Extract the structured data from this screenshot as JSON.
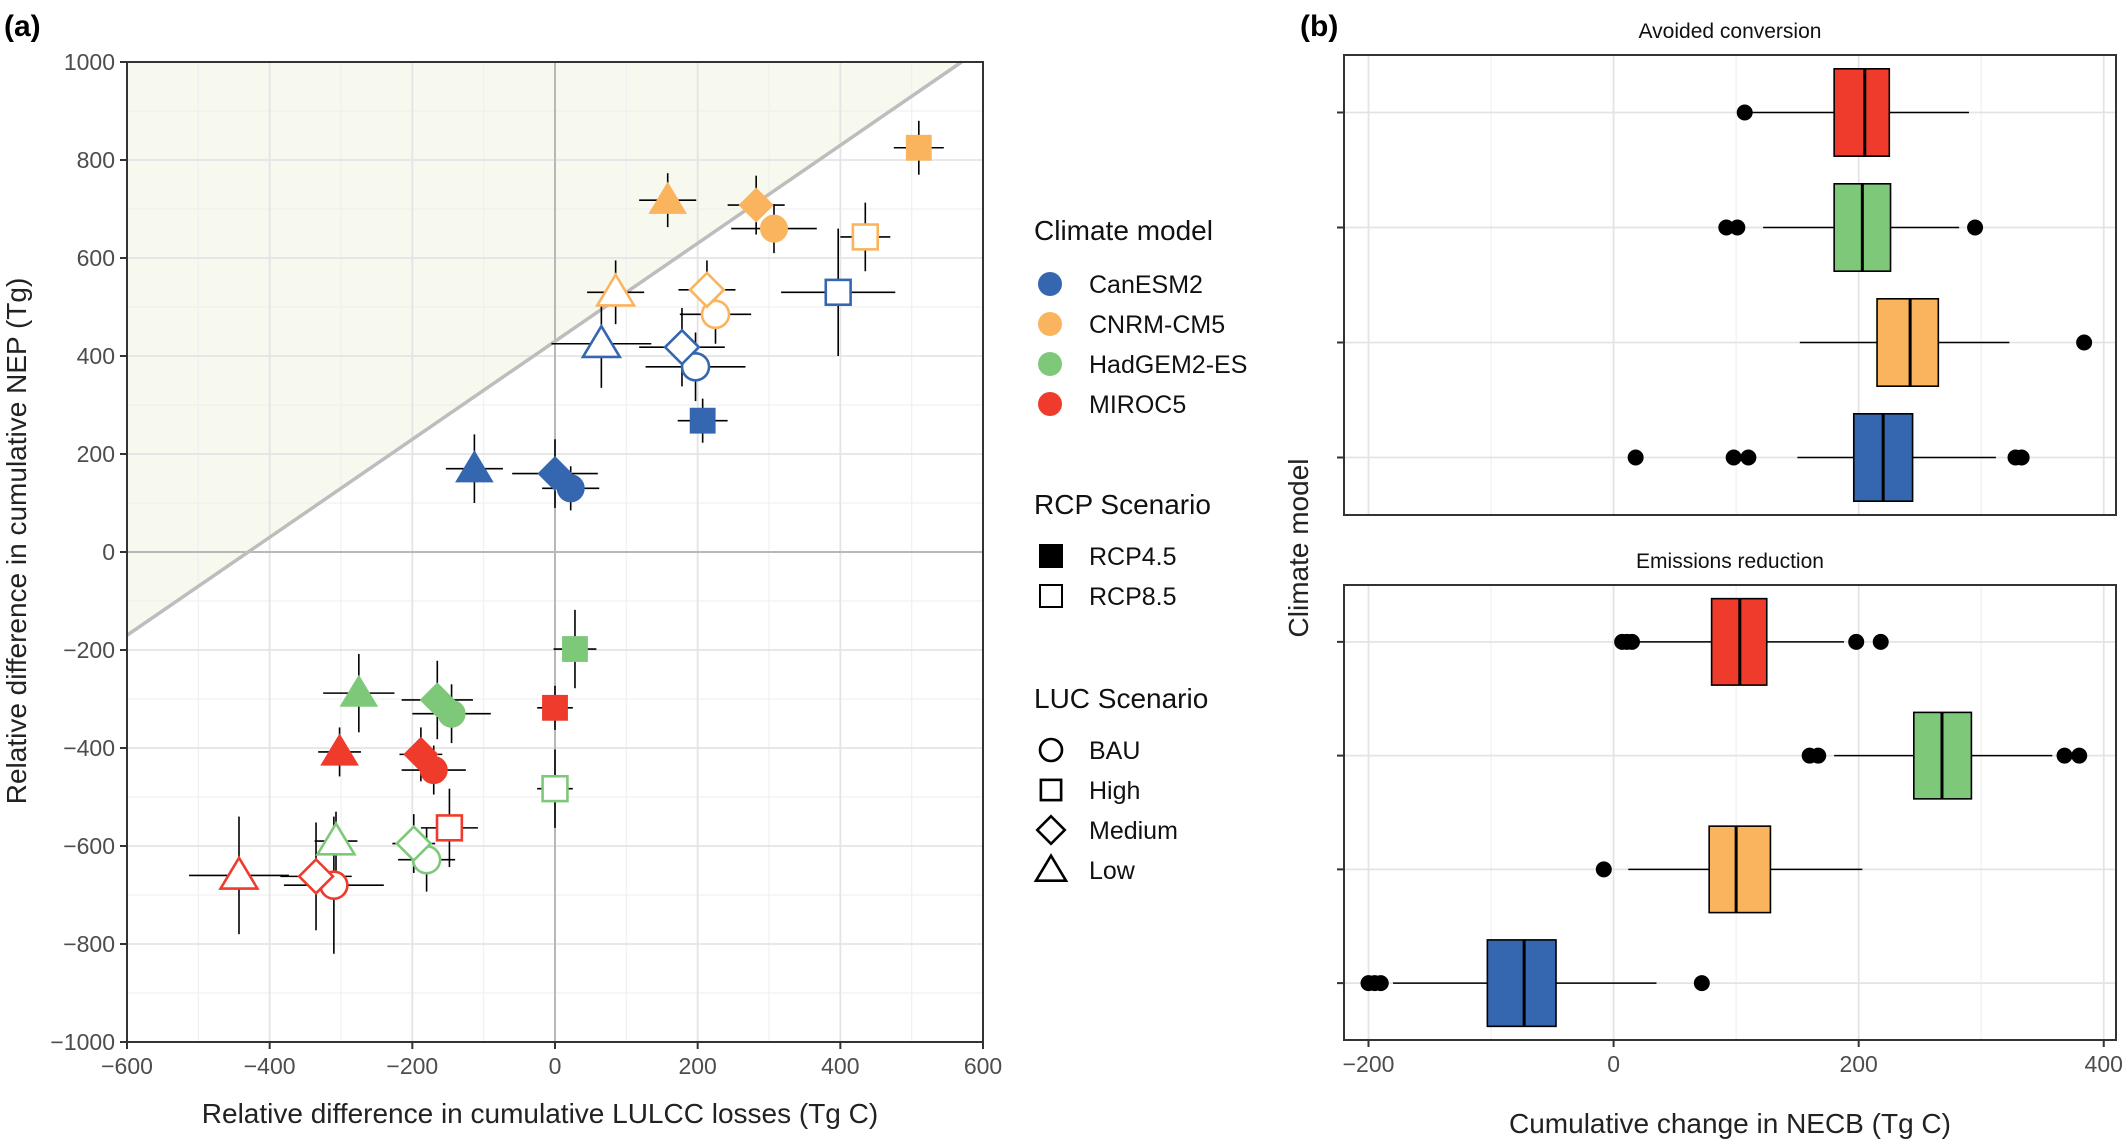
{
  "panel_a": {
    "label": "(a)",
    "xlabel": "Relative difference in cumulative LULCC losses (Tg C)",
    "ylabel": "Relative difference in cumulative NEP (Tg)"
  },
  "panel_b": {
    "label": "(b)",
    "xlabel": "Cumulative change in NECB (Tg C)",
    "ylabel": "Climate model",
    "facet_top": "Avoided conversion",
    "facet_bottom": "Emissions reduction"
  },
  "legend": {
    "climate_title": "Climate model",
    "climate_items": [
      {
        "label": "CanESM2",
        "color": "#3567b0"
      },
      {
        "label": "CNRM-CM5",
        "color": "#fbb45e"
      },
      {
        "label": "HadGEM2-ES",
        "color": "#7ec87a"
      },
      {
        "label": "MIROC5",
        "color": "#ee3b2b"
      }
    ],
    "rcp_title": "RCP Scenario",
    "rcp_items": [
      {
        "label": "RCP4.5",
        "fill": "filled"
      },
      {
        "label": "RCP8.5",
        "fill": "open"
      }
    ],
    "luc_title": "LUC Scenario",
    "luc_items": [
      {
        "label": "BAU",
        "shape": "circle"
      },
      {
        "label": "High",
        "shape": "square"
      },
      {
        "label": "Medium",
        "shape": "diamond"
      },
      {
        "label": "Low",
        "shape": "triangle"
      }
    ]
  },
  "chart_data": [
    {
      "type": "scatter",
      "xlabel": "Relative difference in cumulative LULCC losses (Tg C)",
      "ylabel": "Relative difference in cumulative NEP (Tg)",
      "xlim": [
        -600,
        600
      ],
      "ylim": [
        -1000,
        1000
      ],
      "xticks": [
        -600,
        -400,
        -200,
        0,
        200,
        400,
        600
      ],
      "yticks": [
        -1000,
        -800,
        -600,
        -400,
        -200,
        0,
        200,
        400,
        600,
        800,
        1000
      ],
      "xtick_labels": [
        "−600",
        "−400",
        "−200",
        "0",
        "200",
        "400",
        "600"
      ],
      "ytick_labels": [
        "−1000",
        "−800",
        "−600",
        "−400",
        "−200",
        "0",
        "200",
        "400",
        "600",
        "800",
        "1000"
      ],
      "reference_line": {
        "slope": 1,
        "intercept": 430
      },
      "grid": true,
      "points": [
        {
          "model": "CanESM2",
          "rcp": "RCP4.5",
          "luc": "BAU",
          "x": 22,
          "y": 130,
          "xerr": 40,
          "yerr": 45
        },
        {
          "model": "CanESM2",
          "rcp": "RCP4.5",
          "luc": "High",
          "x": 207,
          "y": 268,
          "xerr": 35,
          "yerr": 45
        },
        {
          "model": "CanESM2",
          "rcp": "RCP4.5",
          "luc": "Medium",
          "x": 0,
          "y": 160,
          "xerr": 60,
          "yerr": 70
        },
        {
          "model": "CanESM2",
          "rcp": "RCP4.5",
          "luc": "Low",
          "x": -113,
          "y": 170,
          "xerr": 40,
          "yerr": 70
        },
        {
          "model": "CanESM2",
          "rcp": "RCP8.5",
          "luc": "BAU",
          "x": 197,
          "y": 378,
          "xerr": 70,
          "yerr": 70
        },
        {
          "model": "CanESM2",
          "rcp": "RCP8.5",
          "luc": "High",
          "x": 397,
          "y": 530,
          "xerr": 80,
          "yerr": 130
        },
        {
          "model": "CanESM2",
          "rcp": "RCP8.5",
          "luc": "Medium",
          "x": 178,
          "y": 418,
          "xerr": 60,
          "yerr": 80
        },
        {
          "model": "CanESM2",
          "rcp": "RCP8.5",
          "luc": "Low",
          "x": 65,
          "y": 425,
          "xerr": 70,
          "yerr": 90
        },
        {
          "model": "CNRM-CM5",
          "rcp": "RCP4.5",
          "luc": "BAU",
          "x": 307,
          "y": 660,
          "xerr": 60,
          "yerr": 50
        },
        {
          "model": "CNRM-CM5",
          "rcp": "RCP4.5",
          "luc": "High",
          "x": 510,
          "y": 825,
          "xerr": 35,
          "yerr": 55
        },
        {
          "model": "CNRM-CM5",
          "rcp": "RCP4.5",
          "luc": "Medium",
          "x": 282,
          "y": 708,
          "xerr": 40,
          "yerr": 60
        },
        {
          "model": "CNRM-CM5",
          "rcp": "RCP4.5",
          "luc": "Low",
          "x": 158,
          "y": 718,
          "xerr": 40,
          "yerr": 55
        },
        {
          "model": "CNRM-CM5",
          "rcp": "RCP8.5",
          "luc": "BAU",
          "x": 225,
          "y": 485,
          "xerr": 50,
          "yerr": 60
        },
        {
          "model": "CNRM-CM5",
          "rcp": "RCP8.5",
          "luc": "High",
          "x": 435,
          "y": 643,
          "xerr": 35,
          "yerr": 70
        },
        {
          "model": "CNRM-CM5",
          "rcp": "RCP8.5",
          "luc": "Medium",
          "x": 213,
          "y": 535,
          "xerr": 40,
          "yerr": 60
        },
        {
          "model": "CNRM-CM5",
          "rcp": "RCP8.5",
          "luc": "Low",
          "x": 85,
          "y": 530,
          "xerr": 40,
          "yerr": 65
        },
        {
          "model": "HadGEM2-ES",
          "rcp": "RCP4.5",
          "luc": "BAU",
          "x": -145,
          "y": -330,
          "xerr": 55,
          "yerr": 60
        },
        {
          "model": "HadGEM2-ES",
          "rcp": "RCP4.5",
          "luc": "High",
          "x": 28,
          "y": -198,
          "xerr": 30,
          "yerr": 80
        },
        {
          "model": "HadGEM2-ES",
          "rcp": "RCP4.5",
          "luc": "Medium",
          "x": -165,
          "y": -302,
          "xerr": 50,
          "yerr": 80
        },
        {
          "model": "HadGEM2-ES",
          "rcp": "RCP4.5",
          "luc": "Low",
          "x": -275,
          "y": -288,
          "xerr": 50,
          "yerr": 80
        },
        {
          "model": "HadGEM2-ES",
          "rcp": "RCP8.5",
          "luc": "BAU",
          "x": -180,
          "y": -628,
          "xerr": 40,
          "yerr": 65
        },
        {
          "model": "HadGEM2-ES",
          "rcp": "RCP8.5",
          "luc": "High",
          "x": 0,
          "y": -483,
          "xerr": 25,
          "yerr": 80
        },
        {
          "model": "HadGEM2-ES",
          "rcp": "RCP8.5",
          "luc": "Medium",
          "x": -198,
          "y": -595,
          "xerr": 30,
          "yerr": 60
        },
        {
          "model": "HadGEM2-ES",
          "rcp": "RCP8.5",
          "luc": "Low",
          "x": -307,
          "y": -590,
          "xerr": 30,
          "yerr": 60
        },
        {
          "model": "MIROC5",
          "rcp": "RCP4.5",
          "luc": "BAU",
          "x": -170,
          "y": -445,
          "xerr": 45,
          "yerr": 50
        },
        {
          "model": "MIROC5",
          "rcp": "RCP4.5",
          "luc": "High",
          "x": 0,
          "y": -318,
          "xerr": 25,
          "yerr": 45
        },
        {
          "model": "MIROC5",
          "rcp": "RCP4.5",
          "luc": "Medium",
          "x": -188,
          "y": -413,
          "xerr": 30,
          "yerr": 55
        },
        {
          "model": "MIROC5",
          "rcp": "RCP4.5",
          "luc": "Low",
          "x": -302,
          "y": -408,
          "xerr": 30,
          "yerr": 50
        },
        {
          "model": "MIROC5",
          "rcp": "RCP8.5",
          "luc": "BAU",
          "x": -310,
          "y": -680,
          "xerr": 70,
          "yerr": 140
        },
        {
          "model": "MIROC5",
          "rcp": "RCP8.5",
          "luc": "High",
          "x": -148,
          "y": -563,
          "xerr": 40,
          "yerr": 80
        },
        {
          "model": "MIROC5",
          "rcp": "RCP8.5",
          "luc": "Medium",
          "x": -335,
          "y": -662,
          "xerr": 50,
          "yerr": 110
        },
        {
          "model": "MIROC5",
          "rcp": "RCP8.5",
          "luc": "Low",
          "x": -443,
          "y": -660,
          "xerr": 70,
          "yerr": 120
        }
      ]
    },
    {
      "type": "box",
      "xlabel": "Cumulative change in NECB (Tg C)",
      "ylabel": "Climate model",
      "xlim": [
        -220,
        410
      ],
      "xticks": [
        -200,
        0,
        200,
        400
      ],
      "xtick_labels": [
        "−200",
        "0",
        "200",
        "400"
      ],
      "minor_xticks": [
        -100,
        100,
        300
      ],
      "grid": true,
      "facets": [
        {
          "title": "Avoided conversion",
          "boxes": [
            {
              "model": "MIROC5",
              "whisker_low": 110,
              "q1": 180,
              "median": 205,
              "q3": 225,
              "whisker_high": 290,
              "outliers": [
                107
              ]
            },
            {
              "model": "HadGEM2-ES",
              "whisker_low": 122,
              "q1": 180,
              "median": 203,
              "q3": 226,
              "whisker_high": 282,
              "outliers": [
                92,
                101,
                295
              ]
            },
            {
              "model": "CNRM-CM5",
              "whisker_low": 152,
              "q1": 215,
              "median": 242,
              "q3": 265,
              "whisker_high": 323,
              "outliers": [
                384
              ]
            },
            {
              "model": "CanESM2",
              "whisker_low": 150,
              "q1": 196,
              "median": 220,
              "q3": 244,
              "whisker_high": 312,
              "outliers": [
                18,
                98,
                110,
                328,
                333
              ]
            }
          ]
        },
        {
          "title": "Emissions reduction",
          "boxes": [
            {
              "model": "MIROC5",
              "whisker_low": 18,
              "q1": 80,
              "median": 103,
              "q3": 125,
              "whisker_high": 188,
              "outliers": [
                7,
                11,
                15,
                198,
                218
              ]
            },
            {
              "model": "HadGEM2-ES",
              "whisker_low": 180,
              "q1": 245,
              "median": 268,
              "q3": 292,
              "whisker_high": 358,
              "outliers": [
                160,
                167,
                368,
                380
              ]
            },
            {
              "model": "CNRM-CM5",
              "whisker_low": 12,
              "q1": 78,
              "median": 100,
              "q3": 128,
              "whisker_high": 203,
              "outliers": [
                -8
              ]
            },
            {
              "model": "CanESM2",
              "whisker_low": -180,
              "q1": -103,
              "median": -73,
              "q3": -47,
              "whisker_high": 35,
              "outliers": [
                -200,
                -195,
                -190,
                72
              ]
            }
          ]
        }
      ]
    }
  ]
}
